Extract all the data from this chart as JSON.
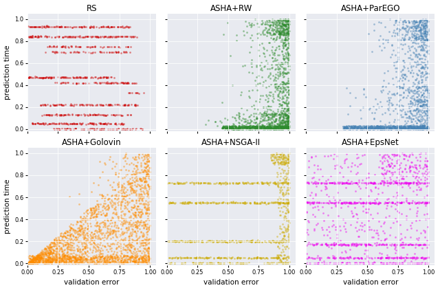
{
  "titles": [
    "RS",
    "ASHA+RW",
    "ASHA+ParEGO",
    "ASHA+Golovin",
    "ASHA+NSGA-II",
    "ASHA+EpsNet"
  ],
  "colors": [
    "#cc0000",
    "#2e8b2e",
    "#4682b4",
    "#FF8C00",
    "#ccaa00",
    "#ee00ee"
  ],
  "xlabel": "validation error",
  "ylabel": "prediction time",
  "bg_color": "#e8eaf0",
  "fig_bg": "#ffffff",
  "alpha": 0.45,
  "marker_size": 4
}
